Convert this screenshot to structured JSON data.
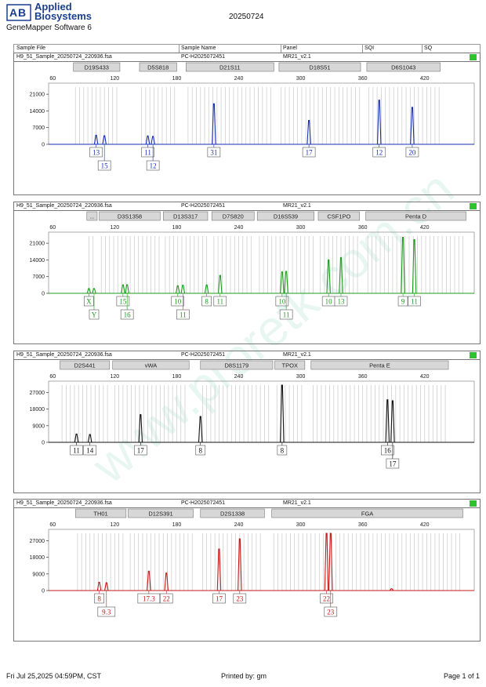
{
  "header": {
    "brand_line1": "Applied",
    "brand_line2": "Biosystems",
    "software": "GeneMapper Software 6",
    "date": "20250724"
  },
  "columns": [
    "Sample File",
    "Sample Name",
    "Panel",
    "SQI",
    "SQ"
  ],
  "footer": {
    "datetime": "Fri Jul 25,2025 04:59PM, CST",
    "printed_by": "Printed by: gm",
    "page": "Page 1 of 1"
  },
  "watermark": "www.proretk.com.cn",
  "colors": {
    "blue": "#1a2fb0",
    "green": "#1f9a1f",
    "black": "#111111",
    "red": "#c41a1a",
    "status": "#2ec22e"
  },
  "chart_data": [
    {
      "type": "line",
      "panel": "blue",
      "sample_file": "H9_51_Sample_20250724_220936.fsa",
      "sample_name": "PC-H2025072451",
      "panel_name": "MR21_v2.1",
      "x_ticks": [
        60,
        120,
        180,
        240,
        300,
        360,
        420
      ],
      "y_ticks": [
        0,
        7000,
        14000,
        21000
      ],
      "ylim": [
        0,
        24000
      ],
      "xlim": [
        56,
        468
      ],
      "loci": [
        {
          "name": "D19S433",
          "x": [
            80,
            125
          ]
        },
        {
          "name": "D5S818",
          "x": [
            144,
            180
          ]
        },
        {
          "name": "D21S11",
          "x": [
            189,
            274
          ]
        },
        {
          "name": "D18S51",
          "x": [
            279,
            358
          ]
        },
        {
          "name": "D6S1043",
          "x": [
            364,
            435
          ]
        }
      ],
      "peaks": [
        {
          "x": 102,
          "h": 3800
        },
        {
          "x": 110,
          "h": 3600
        },
        {
          "x": 152,
          "h": 3500
        },
        {
          "x": 157,
          "h": 3300
        },
        {
          "x": 216,
          "h": 17000
        },
        {
          "x": 308,
          "h": 10000
        },
        {
          "x": 376,
          "h": 18500
        },
        {
          "x": 408,
          "h": 15500
        }
      ],
      "labels": [
        {
          "x": 102,
          "t": "13",
          "row": 0
        },
        {
          "x": 110,
          "t": "15",
          "row": 1
        },
        {
          "x": 152,
          "t": "11",
          "row": 0
        },
        {
          "x": 157,
          "t": "12",
          "row": 1
        },
        {
          "x": 216,
          "t": "31",
          "row": 0
        },
        {
          "x": 308,
          "t": "17",
          "row": 0
        },
        {
          "x": 376,
          "t": "12",
          "row": 0
        },
        {
          "x": 408,
          "t": "20",
          "row": 0
        }
      ]
    },
    {
      "type": "line",
      "panel": "green",
      "sample_file": "H9_51_Sample_20250724_220936.fsa",
      "sample_name": "PC-H2025072451",
      "panel_name": "MR21_v2.1",
      "x_ticks": [
        60,
        120,
        180,
        240,
        300,
        360,
        420
      ],
      "y_ticks": [
        0,
        7000,
        14000,
        21000
      ],
      "ylim": [
        0,
        24000
      ],
      "xlim": [
        56,
        468
      ],
      "loci": [
        {
          "name": "...",
          "x": [
            93,
            103
          ]
        },
        {
          "name": "D3S1358",
          "x": [
            105,
            164
          ]
        },
        {
          "name": "D13S317",
          "x": [
            167,
            210
          ]
        },
        {
          "name": "D7S820",
          "x": [
            214,
            255
          ]
        },
        {
          "name": "D16S539",
          "x": [
            258,
            313
          ]
        },
        {
          "name": "CSF1PO",
          "x": [
            317,
            357
          ]
        },
        {
          "name": "Penta D",
          "x": [
            363,
            460
          ]
        }
      ],
      "peaks": [
        {
          "x": 95,
          "h": 2000
        },
        {
          "x": 100,
          "h": 2000
        },
        {
          "x": 128,
          "h": 3500
        },
        {
          "x": 132,
          "h": 3600
        },
        {
          "x": 181,
          "h": 3200
        },
        {
          "x": 186,
          "h": 3400
        },
        {
          "x": 209,
          "h": 3500
        },
        {
          "x": 222,
          "h": 7500
        },
        {
          "x": 282,
          "h": 9000
        },
        {
          "x": 286,
          "h": 9200
        },
        {
          "x": 327,
          "h": 14000
        },
        {
          "x": 339,
          "h": 15000
        },
        {
          "x": 399,
          "h": 23500
        },
        {
          "x": 410,
          "h": 22500
        }
      ],
      "labels": [
        {
          "x": 95,
          "t": "X",
          "row": 0
        },
        {
          "x": 100,
          "t": "Y",
          "row": 1
        },
        {
          "x": 128,
          "t": "15",
          "row": 0
        },
        {
          "x": 132,
          "t": "16",
          "row": 1
        },
        {
          "x": 181,
          "t": "10",
          "row": 0
        },
        {
          "x": 186,
          "t": "11",
          "row": 1
        },
        {
          "x": 209,
          "t": "8",
          "row": 0
        },
        {
          "x": 222,
          "t": "11",
          "row": 0
        },
        {
          "x": 282,
          "t": "10",
          "row": 0
        },
        {
          "x": 286,
          "t": "11",
          "row": 1
        },
        {
          "x": 327,
          "t": "10",
          "row": 0
        },
        {
          "x": 339,
          "t": "13",
          "row": 0
        },
        {
          "x": 399,
          "t": "9",
          "row": 0
        },
        {
          "x": 410,
          "t": "11",
          "row": 0
        }
      ]
    },
    {
      "type": "line",
      "panel": "black",
      "sample_file": "H9_51_Sample_20250724_220936.fsa",
      "sample_name": "PC-H2025072451",
      "panel_name": "MR21_v2.1",
      "x_ticks": [
        60,
        120,
        180,
        240,
        300,
        360,
        420
      ],
      "y_ticks": [
        0,
        9000,
        18000,
        27000
      ],
      "ylim": [
        0,
        31000
      ],
      "xlim": [
        56,
        468
      ],
      "loci": [
        {
          "name": "D2S441",
          "x": [
            67,
            115
          ]
        },
        {
          "name": "vWA",
          "x": [
            118,
            192
          ]
        },
        {
          "name": "D8S1179",
          "x": [
            203,
            273
          ]
        },
        {
          "name": "TPOX",
          "x": [
            275,
            304
          ]
        },
        {
          "name": "Penta E",
          "x": [
            310,
            443
          ]
        }
      ],
      "peaks": [
        {
          "x": 83,
          "h": 4500
        },
        {
          "x": 96,
          "h": 4200
        },
        {
          "x": 145,
          "h": 15000
        },
        {
          "x": 203,
          "h": 14000
        },
        {
          "x": 282,
          "h": 31000
        },
        {
          "x": 384,
          "h": 23000
        },
        {
          "x": 389,
          "h": 22500
        }
      ],
      "labels": [
        {
          "x": 83,
          "t": "11",
          "row": 0
        },
        {
          "x": 96,
          "t": "14",
          "row": 0
        },
        {
          "x": 145,
          "t": "17",
          "row": 0
        },
        {
          "x": 203,
          "t": "8",
          "row": 0
        },
        {
          "x": 282,
          "t": "8",
          "row": 0
        },
        {
          "x": 384,
          "t": "16",
          "row": 0
        },
        {
          "x": 389,
          "t": "17",
          "row": 1
        }
      ]
    },
    {
      "type": "line",
      "panel": "red",
      "sample_file": "H9_51_Sample_20250724_220936.fsa",
      "sample_name": "PC-H2025072451",
      "panel_name": "MR21_v2.1",
      "x_ticks": [
        60,
        120,
        180,
        240,
        300,
        360,
        420
      ],
      "y_ticks": [
        0,
        9000,
        18000,
        27000
      ],
      "ylim": [
        0,
        31000
      ],
      "xlim": [
        56,
        468
      ],
      "loci": [
        {
          "name": "TH01",
          "x": [
            82,
            131
          ]
        },
        {
          "name": "D12S391",
          "x": [
            133,
            196
          ]
        },
        {
          "name": "D2S1338",
          "x": [
            203,
            265
          ]
        },
        {
          "name": "FGA",
          "x": [
            272,
            457
          ]
        }
      ],
      "peaks": [
        {
          "x": 105,
          "h": 4500
        },
        {
          "x": 112,
          "h": 4200
        },
        {
          "x": 153,
          "h": 10500
        },
        {
          "x": 170,
          "h": 9500
        },
        {
          "x": 221,
          "h": 22500
        },
        {
          "x": 241,
          "h": 28000
        },
        {
          "x": 325,
          "h": 31000
        },
        {
          "x": 329,
          "h": 31000
        },
        {
          "x": 388,
          "h": 1000
        }
      ],
      "labels": [
        {
          "x": 105,
          "t": "8",
          "row": 0
        },
        {
          "x": 112,
          "t": "9.3",
          "row": 1
        },
        {
          "x": 153,
          "t": "17.3",
          "row": 0
        },
        {
          "x": 170,
          "t": "22",
          "row": 0
        },
        {
          "x": 221,
          "t": "17",
          "row": 0
        },
        {
          "x": 241,
          "t": "23",
          "row": 0
        },
        {
          "x": 325,
          "t": "22",
          "row": 0
        },
        {
          "x": 329,
          "t": "23",
          "row": 1
        }
      ]
    }
  ]
}
